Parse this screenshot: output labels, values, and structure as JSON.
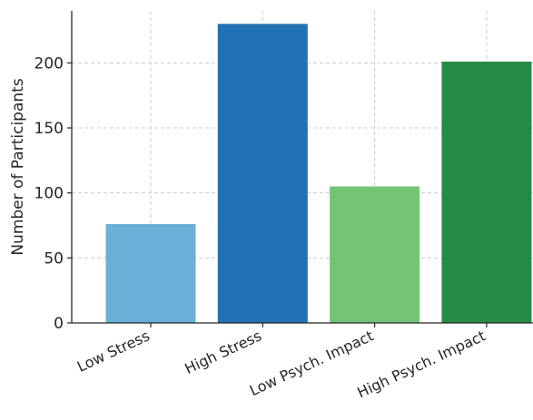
{
  "chart_data": {
    "type": "bar",
    "title": "",
    "xlabel": "",
    "ylabel": "Number of Participants",
    "categories": [
      "Low Stress",
      "High Stress",
      "Low Psych. Impact",
      "High Psych. Impact"
    ],
    "values": [
      76,
      230,
      105,
      201
    ],
    "colors": [
      "#6baed6",
      "#2171b5",
      "#74c476",
      "#238b45"
    ],
    "ylim": [
      0,
      240
    ],
    "yticks": [
      0,
      50,
      100,
      150,
      200
    ],
    "grid": true,
    "legend": "none"
  }
}
